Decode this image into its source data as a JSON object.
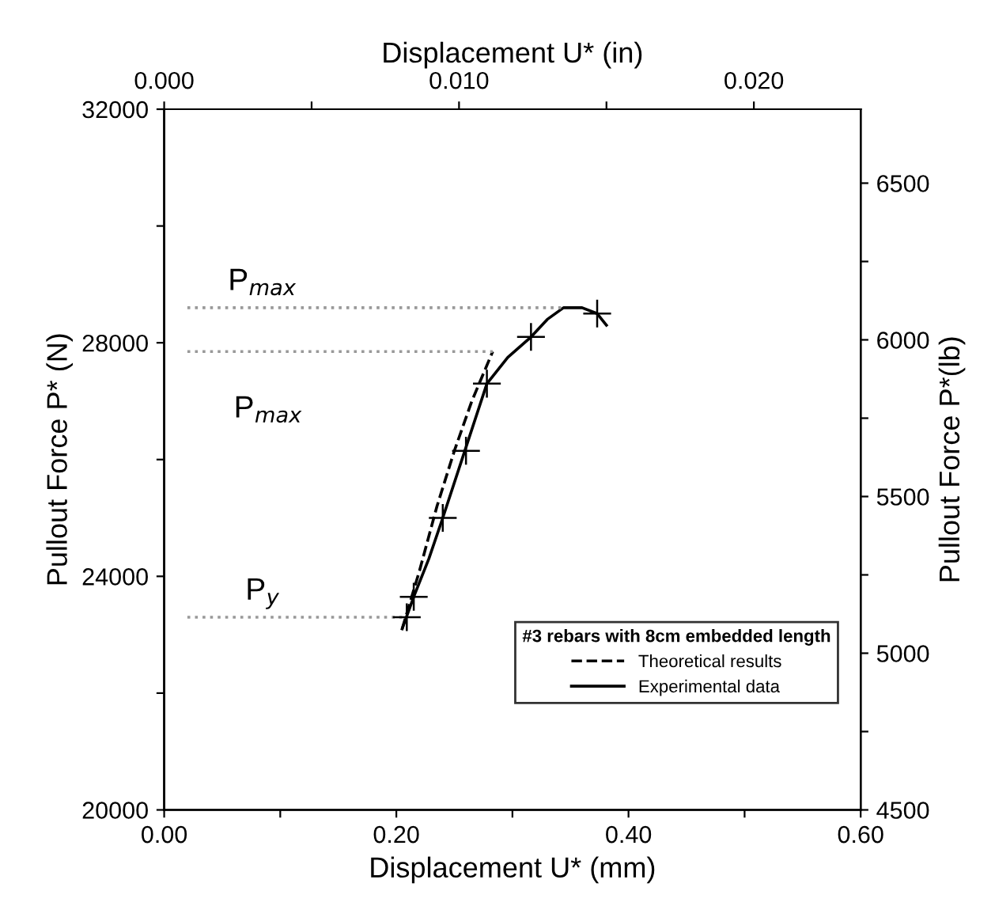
{
  "chart_data": {
    "type": "line",
    "xlabel": "Displacement U* (mm)",
    "ylabel": "Pullout Force P* (N)",
    "y2label": "Pullout Force P*(lb)",
    "x2label": "Displacement U* (in)",
    "legend_title": "#3 rebars with 8cm embedded length",
    "legend": "bottom right",
    "grid": false,
    "xlim": [
      0,
      0.6
    ],
    "xticks": [
      {
        "value": 0,
        "label": "0.00"
      },
      {
        "value": 0.1,
        "label": null
      },
      {
        "value": 0.2,
        "label": "0.20"
      },
      {
        "value": 0.3,
        "label": null
      },
      {
        "value": 0.4,
        "label": "0.40"
      },
      {
        "value": 0.5,
        "label": null
      },
      {
        "value": 0.6,
        "label": "0.60"
      }
    ],
    "x2lim": [
      0,
      0.023622
    ],
    "x2ticks": [
      {
        "value": 0,
        "label": "0.000"
      },
      {
        "value": 0.005,
        "label": null
      },
      {
        "value": 0.01,
        "label": "0.010"
      },
      {
        "value": 0.015,
        "label": null
      },
      {
        "value": 0.02,
        "label": "0.020"
      }
    ],
    "ylim": [
      20000,
      32000
    ],
    "yticks": [
      20000,
      {
        "value": 22000,
        "label": null
      },
      24000,
      {
        "value": 26000,
        "label": null
      },
      28000,
      {
        "value": 30000,
        "label": null
      },
      32000
    ],
    "y2lim": [
      4500,
      6736
    ],
    "y2ticks": [
      4500,
      {
        "value": 4750,
        "label": null
      },
      5000,
      {
        "value": 5250,
        "label": null
      },
      5500,
      {
        "value": 5750,
        "label": null
      },
      6000,
      {
        "value": 6250,
        "label": null
      },
      6500
    ],
    "series": [
      {
        "name": "Theoretical results",
        "color": "#000000",
        "line_style": "dashed",
        "marker": "none",
        "x": [
          0.205,
          0.22,
          0.235,
          0.25,
          0.265,
          0.283
        ],
        "values": [
          23100,
          24100,
          25200,
          26150,
          27000,
          27850
        ]
      },
      {
        "name": "Experimental data",
        "color": "#000000",
        "line_style": "solid",
        "marker": "none",
        "x": [
          0.205,
          0.215,
          0.228,
          0.24,
          0.259,
          0.278,
          0.296,
          0.316,
          0.33,
          0.344,
          0.36,
          0.373,
          0.381
        ],
        "values": [
          23100,
          23650,
          24300,
          25000,
          26150,
          27300,
          27750,
          28100,
          28400,
          28600,
          28600,
          28500,
          28300
        ]
      },
      {
        "type": "scatter",
        "color": "#000000",
        "marker": "cross",
        "x": [
          0.209,
          0.215,
          0.24,
          0.26,
          0.278,
          0.316,
          0.373
        ],
        "values": [
          23300,
          23650,
          25000,
          26150,
          27300,
          28100,
          28500
        ]
      },
      {
        "color": "#999999",
        "line_style": "dotted",
        "marker": "none",
        "x": [
          0.02,
          0.344
        ],
        "values": [
          28600,
          28600
        ]
      },
      {
        "color": "#999999",
        "line_style": "dotted",
        "marker": "none",
        "x": [
          0.02,
          0.283
        ],
        "values": [
          27850,
          27850
        ]
      },
      {
        "color": "#999999",
        "line_style": "dotted",
        "marker": "none",
        "x": [
          0.02,
          0.209
        ],
        "values": [
          23300,
          23300
        ]
      }
    ],
    "annotations": [
      "P$_{max}$",
      "P$_{max}$",
      "P$_{y}$"
    ]
  }
}
